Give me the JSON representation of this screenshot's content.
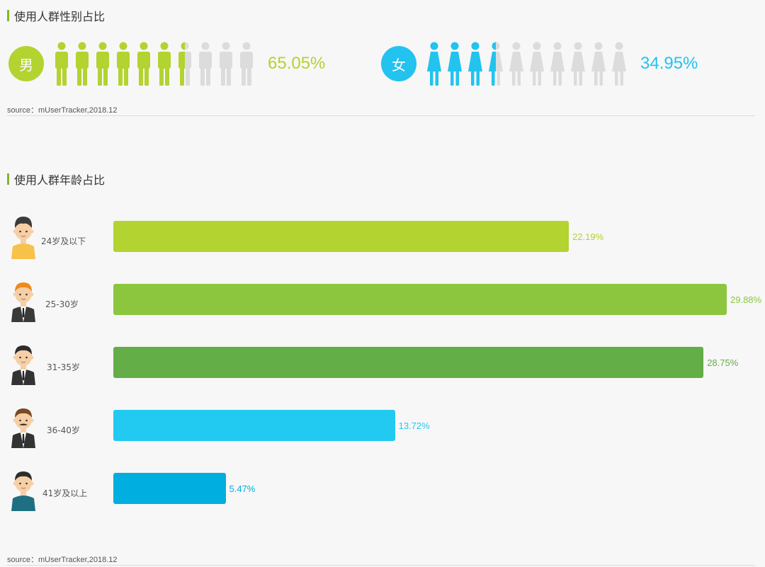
{
  "gender_section": {
    "title": "使用人群性别占比",
    "source": "source：mUserTracker,2018.12",
    "male": {
      "symbol": "男",
      "percent_text": "65.05%",
      "share": 0.6505,
      "icon_count": 10,
      "color": "#b3d331"
    },
    "female": {
      "symbol": "女",
      "percent_text": "34.95%",
      "share": 0.3495,
      "icon_count": 10,
      "color": "#22c3ee"
    },
    "inactive_color": "#dcdcdc"
  },
  "age_section": {
    "title": "使用人群年龄占比",
    "source": "source：mUserTracker,2018.12"
  },
  "chart_data": {
    "type": "bar",
    "orientation": "horizontal",
    "categories": [
      "24岁及以下",
      "25-30岁",
      "31-35岁",
      "36-40岁",
      "41岁及以上"
    ],
    "values": [
      22.19,
      29.88,
      28.75,
      13.72,
      5.47
    ],
    "value_labels": [
      "22.19%",
      "29.88%",
      "28.75%",
      "13.72%",
      "5.47%"
    ],
    "colors": [
      "#b3d331",
      "#8cc63f",
      "#63ae47",
      "#22c9f1",
      "#00aedf"
    ],
    "avatars": [
      "young-man-yellow-shirt",
      "man-orange-hair-suit",
      "man-black-hair-suit",
      "man-mustache-suit",
      "older-man-teal-shirt"
    ],
    "xlim": [
      0,
      29.88
    ]
  }
}
